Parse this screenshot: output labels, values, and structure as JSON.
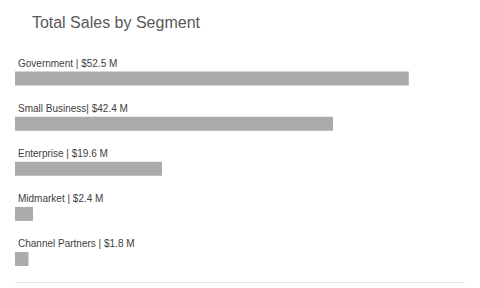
{
  "chart_data": {
    "type": "bar",
    "title": "Total Sales by Segment",
    "orientation": "horizontal",
    "categories": [
      "Government",
      "Small Business",
      "Enterprise",
      "Midmarket",
      "Channel Partners"
    ],
    "values": [
      52.5,
      42.4,
      19.6,
      2.4,
      1.8
    ],
    "value_labels": [
      "Government | $52.5 M",
      "Small Business| $42.4 M",
      "Enterprise | $19.6 M",
      "Midmarket | $2.4 M",
      "Channel Partners | $1.8 M"
    ],
    "data_labels": true,
    "color": "#ababab",
    "xlim": [
      0,
      60
    ],
    "xticks": [],
    "grid": false,
    "tick_labels": false
  }
}
